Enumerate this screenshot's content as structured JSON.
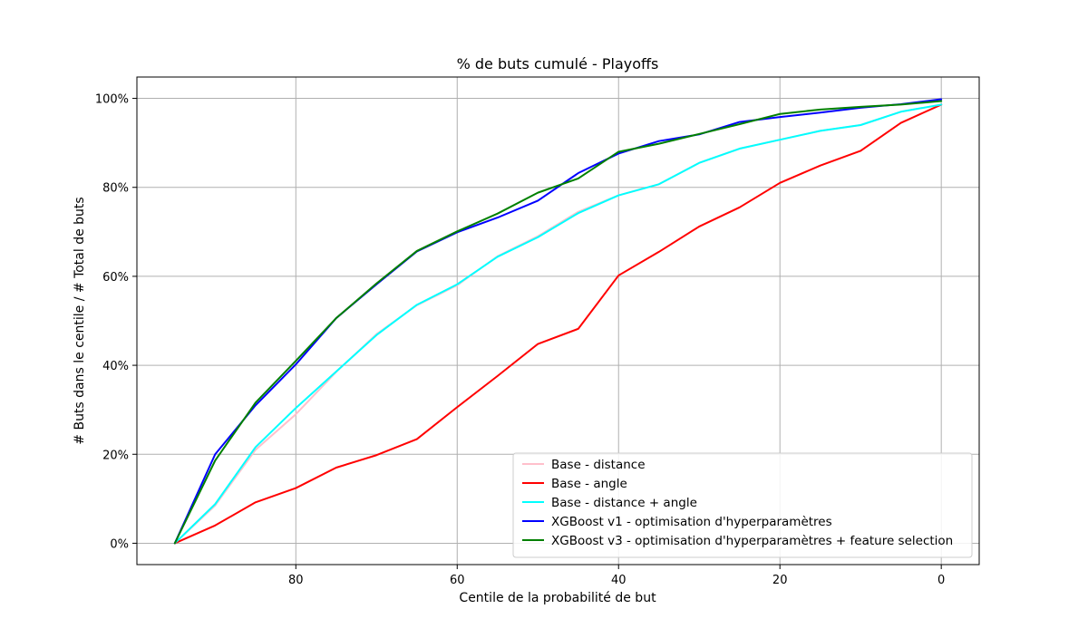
{
  "chart_data": {
    "type": "line",
    "title": "% de buts cumulé - Playoffs",
    "xlabel": "Centile de la probabilité de but",
    "ylabel": "# Buts dans le centile / # Total de buts",
    "xlim": [
      99.7,
      -4.7
    ],
    "ylim": [
      -4.8,
      104.8
    ],
    "x_inverted": true,
    "grid": true,
    "legend_position": "lower-right",
    "x_ticks": [
      {
        "value": 80,
        "label": "80"
      },
      {
        "value": 60,
        "label": "60"
      },
      {
        "value": 40,
        "label": "40"
      },
      {
        "value": 20,
        "label": "20"
      },
      {
        "value": 0,
        "label": "0"
      }
    ],
    "y_ticks": [
      {
        "value": 0,
        "label": "0%"
      },
      {
        "value": 20,
        "label": "20%"
      },
      {
        "value": 40,
        "label": "40%"
      },
      {
        "value": 60,
        "label": "60%"
      },
      {
        "value": 80,
        "label": "80%"
      },
      {
        "value": 100,
        "label": "100%"
      }
    ],
    "x": [
      95,
      90,
      85,
      80,
      75,
      70,
      65,
      60,
      55,
      50,
      45,
      40,
      35,
      30,
      25,
      20,
      15,
      10,
      5,
      0
    ],
    "series": [
      {
        "name": "Base - distance",
        "color": "#ffc0cb",
        "values": [
          0,
          8.5,
          21,
          29,
          38.5,
          47,
          53.5,
          58,
          64.5,
          69,
          74.5,
          78.2,
          80.7,
          85.5,
          88.7,
          90.7,
          92.7,
          94,
          97,
          98.6
        ]
      },
      {
        "name": "Base - angle",
        "color": "#ff0000",
        "values": [
          0,
          4,
          9.2,
          12.4,
          17,
          19.8,
          23.4,
          30.6,
          37.6,
          44.8,
          48.2,
          60.2,
          65.5,
          71.2,
          75.5,
          81,
          84.9,
          88.2,
          94.5,
          98.6
        ]
      },
      {
        "name": "Base - distance + angle",
        "color": "#00ffff",
        "values": [
          0,
          8.8,
          21.6,
          30.4,
          38.6,
          46.8,
          53.6,
          58.2,
          64.4,
          68.8,
          74.2,
          78.2,
          80.7,
          85.5,
          88.7,
          90.7,
          92.7,
          94,
          97,
          98.6
        ]
      },
      {
        "name": "XGBoost v1 - optimisation d'hyperparamètres",
        "color": "#0000ff",
        "values": [
          0,
          20,
          31,
          40.2,
          50.6,
          58.2,
          65.6,
          69.9,
          73.2,
          77,
          83.2,
          87.6,
          90.4,
          91.9,
          94.7,
          95.8,
          96.8,
          97.9,
          98.7,
          99.8
        ]
      },
      {
        "name": "XGBoost v3 - optimisation d'hyperparamètres + feature selection",
        "color": "#008000",
        "values": [
          0,
          18.6,
          31.6,
          41,
          50.6,
          58.4,
          65.7,
          70.1,
          74.1,
          78.8,
          82,
          88,
          89.8,
          92,
          94.2,
          96.5,
          97.5,
          98.1,
          98.6,
          99.4
        ]
      }
    ]
  }
}
